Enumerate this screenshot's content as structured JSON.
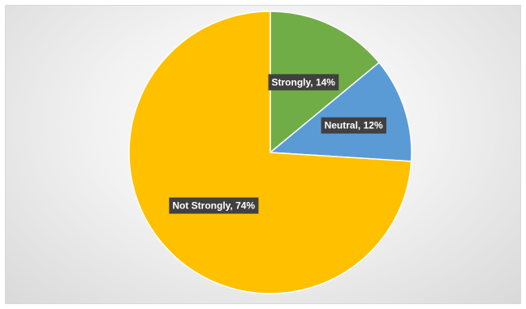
{
  "chart_data": {
    "type": "pie",
    "title": "",
    "start_angle_deg": 0,
    "direction": "clockwise",
    "slices": [
      {
        "label": "Strongly",
        "value": 14,
        "display": "Strongly, 14%",
        "color": "#70ad47"
      },
      {
        "label": "Neutral",
        "value": 12,
        "display": "Neutral, 12%",
        "color": "#5b9bd5"
      },
      {
        "label": "Not Strongly",
        "value": 74,
        "display": "Not Strongly, 74%",
        "color": "#ffc000"
      }
    ],
    "data_label_style": {
      "background": "#404040",
      "text_color": "#ffffff"
    },
    "legend": "none"
  }
}
